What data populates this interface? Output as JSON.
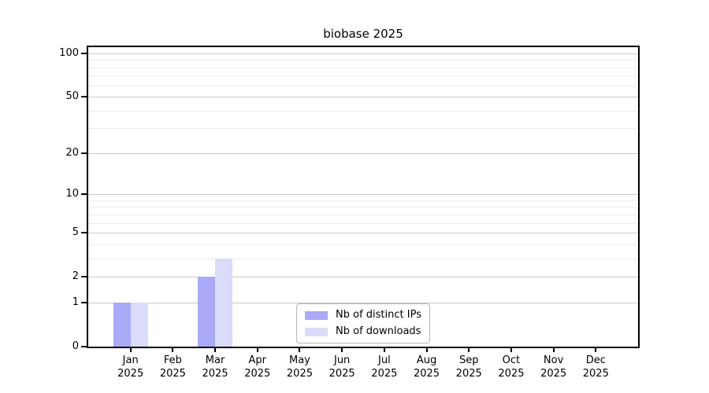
{
  "chart_data": {
    "type": "bar",
    "title": "biobase 2025",
    "categories": [
      "Jan 2025",
      "Feb 2025",
      "Mar 2025",
      "Apr 2025",
      "May 2025",
      "Jun 2025",
      "Jul 2025",
      "Aug 2025",
      "Sep 2025",
      "Oct 2025",
      "Nov 2025",
      "Dec 2025"
    ],
    "x_tick_months": [
      "Jan",
      "Feb",
      "Mar",
      "Apr",
      "May",
      "Jun",
      "Jul",
      "Aug",
      "Sep",
      "Oct",
      "Nov",
      "Dec"
    ],
    "x_tick_year": "2025",
    "series": [
      {
        "name": "Nb of distinct IPs",
        "color": "#aaaaf8",
        "values": [
          1,
          0,
          2,
          0,
          0,
          0,
          0,
          0,
          0,
          0,
          0,
          0
        ]
      },
      {
        "name": "Nb of downloads",
        "color": "#dbdbfa",
        "values": [
          1,
          0,
          3,
          0,
          0,
          0,
          0,
          0,
          0,
          0,
          0,
          0
        ]
      }
    ],
    "xlabel": "",
    "ylabel": "",
    "yscale": "log1p",
    "ylim": [
      0,
      100
    ],
    "yticks": [
      0,
      1,
      2,
      5,
      10,
      20,
      50,
      100
    ],
    "minor_gridlines": [
      3,
      4,
      6,
      7,
      8,
      9,
      30,
      40,
      60,
      70,
      80,
      90
    ],
    "grid": true,
    "legend_position": "inside-bottom-center",
    "gridline_major_color": "#c8c8c8",
    "gridline_minor_color": "#ececec",
    "axis_color": "#000000",
    "background_color": "#ffffff"
  }
}
